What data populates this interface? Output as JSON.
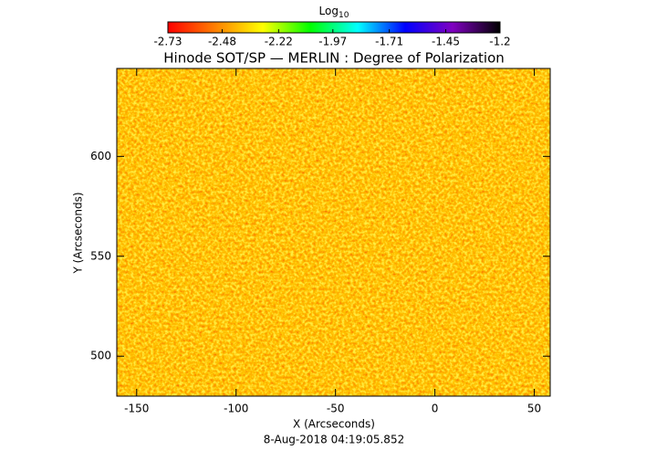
{
  "chart_data": {
    "type": "image",
    "title": "Hinode SOT/SP — MERLIN : Degree of Polarization",
    "x_label": "X (Arcseconds)",
    "y_label": "Y (Arcseconds)",
    "footer": "8-Aug-2018 04:19:05.852",
    "xlim": [
      -160,
      58
    ],
    "ylim": [
      480,
      644
    ],
    "xticks": [
      -150,
      -100,
      -50,
      0,
      50
    ],
    "yticks": [
      500,
      550,
      600
    ],
    "colorbar": {
      "label": "Log",
      "label_subscript": "10",
      "clim": [
        -2.73,
        -1.2
      ],
      "ticks": [
        -2.73,
        -2.48,
        -2.22,
        -1.97,
        -1.71,
        -1.45,
        -1.2
      ],
      "colormap": [
        "#ff0000",
        "#ff8000",
        "#ffff00",
        "#00ff00",
        "#00ffff",
        "#0000ff",
        "#8000c0",
        "#000000"
      ]
    }
  }
}
